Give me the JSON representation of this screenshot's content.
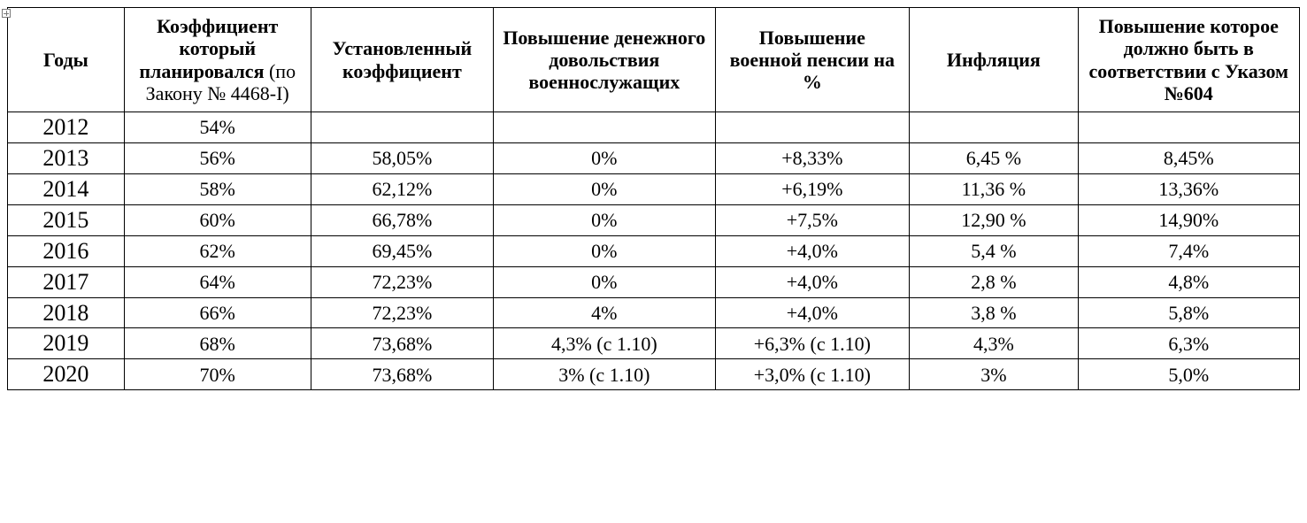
{
  "table": {
    "type": "table",
    "background_color": "#ffffff",
    "border_color": "#000000",
    "text_color": "#000000",
    "font_family": "Times New Roman",
    "header_fontsize": 22,
    "body_fontsize": 22,
    "year_fontsize": 26,
    "col_widths_pct": [
      9.0,
      14.4,
      14.1,
      17.1,
      15.0,
      13.0,
      17.1
    ],
    "columns": [
      {
        "bold": "Годы",
        "plain": ""
      },
      {
        "bold": "Коэффициент который планировался",
        "plain": " (по Закону № 4468-I)"
      },
      {
        "bold": "Установленный коэффициент",
        "plain": ""
      },
      {
        "bold": "Повышение денежного довольствия военнослужащих",
        "plain": ""
      },
      {
        "bold": "Повышение военной пенсии на %",
        "plain": ""
      },
      {
        "bold": "Инфляция",
        "plain": ""
      },
      {
        "bold": "Повышение которое должно быть в соответствии с Указом №604",
        "plain": ""
      }
    ],
    "rows": [
      [
        "2012",
        "54%",
        "",
        "",
        "",
        "",
        ""
      ],
      [
        "2013",
        "56%",
        "58,05%",
        "0%",
        "+8,33%",
        "6,45 %",
        "8,45%"
      ],
      [
        "2014",
        "58%",
        "62,12%",
        "0%",
        "+6,19%",
        "11,36 %",
        "13,36%"
      ],
      [
        "2015",
        "60%",
        "66,78%",
        "0%",
        "+7,5%",
        "12,90 %",
        "14,90%"
      ],
      [
        "2016",
        "62%",
        "69,45%",
        "0%",
        "+4,0%",
        "5,4 %",
        "7,4%"
      ],
      [
        "2017",
        "64%",
        "72,23%",
        "0%",
        "+4,0%",
        "2,8 %",
        "4,8%"
      ],
      [
        "2018",
        "66%",
        "72,23%",
        "4%",
        "+4,0%",
        "3,8 %",
        "5,8%"
      ],
      [
        "2019",
        "68%",
        "73,68%",
        "4,3% (с 1.10)",
        "+6,3% (с 1.10)",
        "4,3%",
        "6,3%"
      ],
      [
        "2020",
        "70%",
        "73,68%",
        "3% (с 1.10)",
        "+3,0% (с 1.10)",
        "3%",
        "5,0%"
      ]
    ]
  }
}
